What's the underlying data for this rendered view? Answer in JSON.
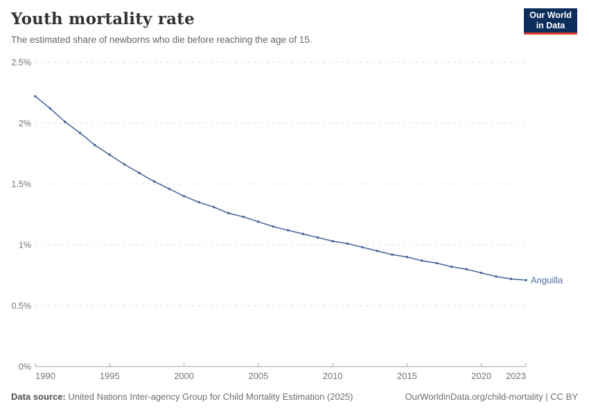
{
  "header": {
    "title": "Youth mortality rate",
    "subtitle": "The estimated share of newborns who die before reaching the age of 15."
  },
  "logo": {
    "line1": "Our World",
    "line2": "in Data",
    "bg_color": "#0d2e5a",
    "accent_color": "#dc3a2b"
  },
  "chart_data": {
    "type": "line",
    "title": "Youth mortality rate",
    "subtitle": "The estimated share of newborns who die before reaching the age of 15.",
    "unit": "%",
    "x": [
      1990,
      1991,
      1992,
      1993,
      1994,
      1995,
      1996,
      1997,
      1998,
      1999,
      2000,
      2001,
      2002,
      2003,
      2004,
      2005,
      2006,
      2007,
      2008,
      2009,
      2010,
      2011,
      2012,
      2013,
      2014,
      2015,
      2016,
      2017,
      2018,
      2019,
      2020,
      2021,
      2022,
      2023
    ],
    "series": [
      {
        "name": "Anguilla",
        "color": "#4c6a9c",
        "values": [
          2.22,
          2.12,
          2.01,
          1.92,
          1.82,
          1.74,
          1.66,
          1.59,
          1.52,
          1.46,
          1.4,
          1.35,
          1.31,
          1.26,
          1.23,
          1.19,
          1.15,
          1.12,
          1.09,
          1.06,
          1.03,
          1.01,
          0.98,
          0.95,
          0.92,
          0.9,
          0.87,
          0.85,
          0.82,
          0.8,
          0.77,
          0.74,
          0.72,
          0.71
        ]
      }
    ],
    "x_ticks": [
      "1990",
      "1995",
      "2000",
      "2005",
      "2010",
      "2015",
      "2020",
      "2023"
    ],
    "y_ticks": [
      {
        "value": 0,
        "label": "0%"
      },
      {
        "value": 0.5,
        "label": "0.5%"
      },
      {
        "value": 1,
        "label": "1%"
      },
      {
        "value": 1.5,
        "label": "1.5%"
      },
      {
        "value": 2,
        "label": "2%"
      },
      {
        "value": 2.5,
        "label": "2.5%"
      }
    ],
    "xlim": [
      1990,
      2023
    ],
    "ylim": [
      0,
      2.5
    ],
    "grid": "horizontal-dashed",
    "legend_position": "end-of-line-label",
    "colors": {
      "gridline": "#dedede",
      "axis": "#a3a3a3",
      "tick_label": "#737373"
    }
  },
  "footer": {
    "source_label": "Data source:",
    "source_text": "United Nations Inter-agency Group for Child Mortality Estimation (2025)",
    "link_text": "OurWorldinData.org/child-mortality | CC BY"
  }
}
